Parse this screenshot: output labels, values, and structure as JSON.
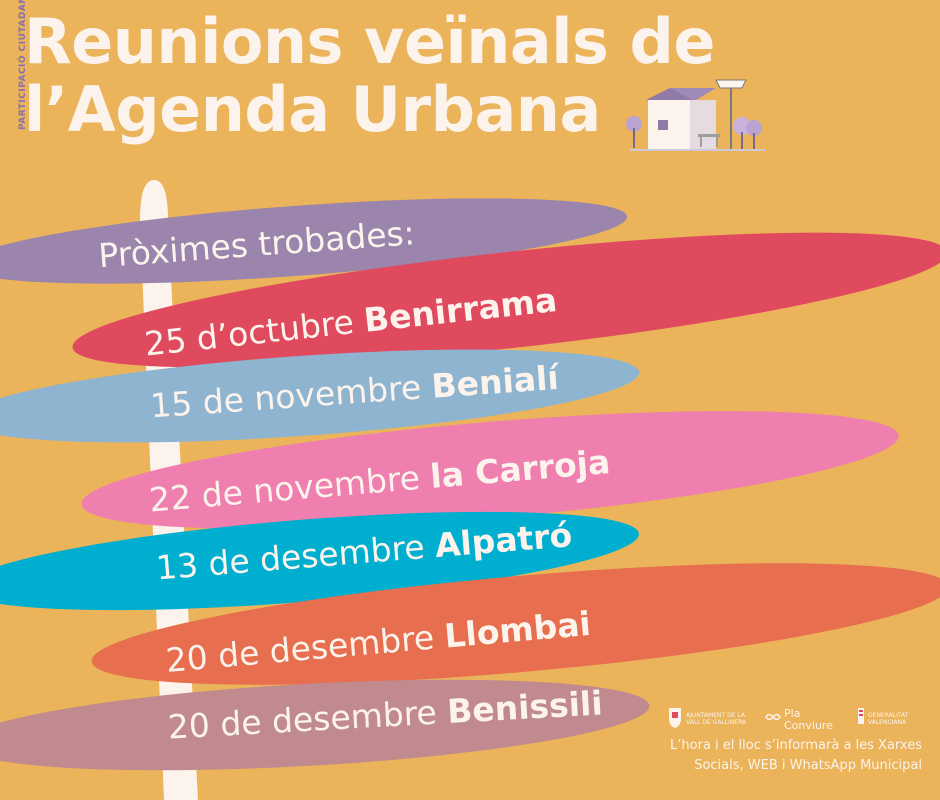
{
  "side_label": "PARTICIPACIÓ CIUTADANA",
  "title": {
    "line1": "Reunions veïnals de",
    "line2": "l’Agenda Urbana"
  },
  "header": "Pròximes trobades:",
  "meetings": [
    {
      "date": "25 d’octubre",
      "place": "Benirrama",
      "color": "#e04a5e"
    },
    {
      "date": "15 de novembre",
      "place": "Benialí",
      "color": "#8fb4d0"
    },
    {
      "date": "22 de novembre",
      "place": "la Carroja",
      "color": "#ef7fae"
    },
    {
      "date": "13 de desembre",
      "place": "Alpatró",
      "color": "#00afd0"
    },
    {
      "date": "20 de desembre",
      "place": "Llombai",
      "color": "#e76e4e"
    },
    {
      "date": "20 de desembre",
      "place": "Benissili",
      "color": "#c18a8e"
    }
  ],
  "header_color": "#9b85ad",
  "logos": {
    "ajuntament": "AJUNTAMENT DE LA VALL DE GALLINERA",
    "pla": "Pla Conviure",
    "generalitat": "GENERALITAT VALENCIANA"
  },
  "footer": {
    "line1": "L’hora i el lloc s’informarà a les Xarxes",
    "line2": "Socials, WEB i WhatsApp Municipal"
  }
}
